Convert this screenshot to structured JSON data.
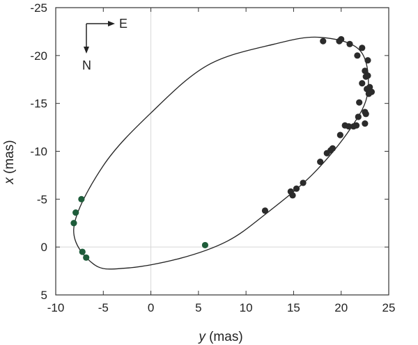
{
  "chart_data": {
    "type": "scatter",
    "xlabel_var": "y",
    "xlabel_unit": " (mas)",
    "ylabel_var": "x",
    "ylabel_unit": " (mas)",
    "xlim": [
      -10,
      25
    ],
    "ylim": [
      5,
      -25
    ],
    "xticks": [
      -10,
      -5,
      0,
      5,
      10,
      15,
      20,
      25
    ],
    "yticks": [
      -25,
      -20,
      -15,
      -10,
      -5,
      0,
      5
    ],
    "grid": "zero-lines only",
    "compass": {
      "east_label": "E",
      "north_label": "N"
    },
    "orbit": {
      "description_points": [
        [
          17.8,
          -21.9
        ],
        [
          13,
          -21.2
        ],
        [
          6,
          -19
        ],
        [
          0,
          -14
        ],
        [
          -5,
          -8.5
        ],
        [
          -8.1,
          -2
        ],
        [
          -6,
          1.8
        ],
        [
          -2.6,
          2.2
        ],
        [
          3,
          1.2
        ],
        [
          8,
          -0.6
        ],
        [
          12,
          -3.4
        ],
        [
          17,
          -7.6
        ],
        [
          21,
          -12.4
        ],
        [
          22.8,
          -16.2
        ],
        [
          22,
          -20.5
        ]
      ],
      "color": "#222222"
    },
    "series": [
      {
        "color": "#2b2b2b",
        "points": [
          [
            18.1,
            -21.5
          ],
          [
            19.8,
            -21.5
          ],
          [
            20,
            -21.7
          ],
          [
            20.9,
            -21.2
          ],
          [
            22.2,
            -20.8
          ],
          [
            21.7,
            -20
          ],
          [
            22.8,
            -19.5
          ],
          [
            22.5,
            -18.4
          ],
          [
            22.6,
            -17.8
          ],
          [
            22.8,
            -17.9
          ],
          [
            22.2,
            -17.1
          ],
          [
            22.7,
            -16.5
          ],
          [
            23,
            -16.7
          ],
          [
            23.2,
            -16.2
          ],
          [
            22.9,
            -16
          ],
          [
            21.9,
            -15.1
          ],
          [
            22.5,
            -14.1
          ],
          [
            22.6,
            -13.9
          ],
          [
            21.8,
            -13.6
          ],
          [
            22.5,
            -12.9
          ],
          [
            21.6,
            -12.7
          ],
          [
            21.3,
            -12.6
          ],
          [
            20.8,
            -12.6
          ],
          [
            20.4,
            -12.7
          ],
          [
            19.9,
            -11.7
          ],
          [
            19.1,
            -10.3
          ],
          [
            18.9,
            -10.1
          ],
          [
            18.5,
            -9.8
          ],
          [
            17.8,
            -8.9
          ],
          [
            16,
            -6.7
          ],
          [
            15.3,
            -6.1
          ],
          [
            14.7,
            -5.8
          ],
          [
            14.9,
            -5.4
          ],
          [
            12,
            -3.8
          ]
        ]
      },
      {
        "color": "#1e5c3a",
        "points": [
          [
            -7.3,
            -5
          ],
          [
            -7.9,
            -3.6
          ],
          [
            -8.1,
            -2.5
          ],
          [
            -7.2,
            0.5
          ],
          [
            -6.8,
            1.1
          ],
          [
            5.7,
            -0.2
          ]
        ]
      }
    ]
  }
}
